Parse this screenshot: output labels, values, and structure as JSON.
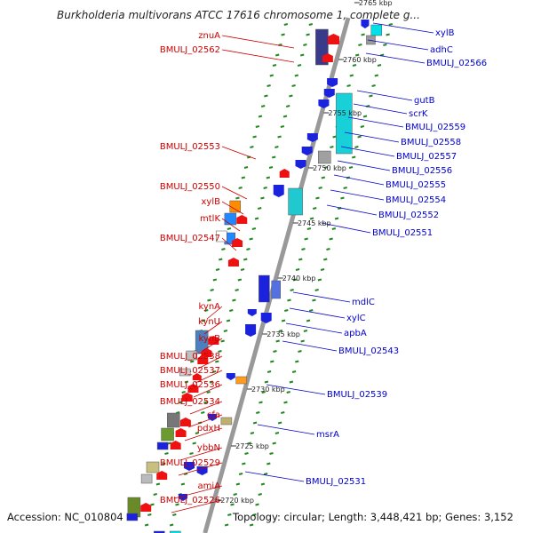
{
  "title": "Burkholderia multivorans ATCC 17616 chromosome 1, complete g...",
  "footer": {
    "accession": "Accession: NC_010804",
    "topology": "Topology: circular; Length: 3,448,421 bp; Genes: 3,152"
  },
  "colors": {
    "left_label": "#cc0000",
    "right_label": "#0000cc",
    "backbone": "#999999",
    "tick": "#228822",
    "red_arrow": "#ee1111",
    "blue_arrow": "#1a22dd"
  },
  "kbp_marks": [
    {
      "text": "2765 kbp"
    },
    {
      "text": "2760 kbp"
    },
    {
      "text": "2755 kbp"
    },
    {
      "text": "2750 kbp"
    },
    {
      "text": "2745 kbp"
    },
    {
      "text": "2740 kbp"
    },
    {
      "text": "2735 kbp"
    },
    {
      "text": "2730 kbp"
    },
    {
      "text": "2725 kbp"
    },
    {
      "text": "2720 kbp"
    }
  ],
  "left_genes": [
    {
      "name": "znuA"
    },
    {
      "name": "BMULJ_02562"
    },
    {
      "name": "BMULJ_02553"
    },
    {
      "name": "BMULJ_02550"
    },
    {
      "name": "xylB"
    },
    {
      "name": "mtlK"
    },
    {
      "name": "BMULJ_02547"
    },
    {
      "name": "kynA"
    },
    {
      "name": "kynU"
    },
    {
      "name": "kynB"
    },
    {
      "name": "BMULJ_02538"
    },
    {
      "name": "BMULJ_02537"
    },
    {
      "name": "BMULJ_02536"
    },
    {
      "name": "BMULJ_02534"
    },
    {
      "name": "cfa"
    },
    {
      "name": "pdxH"
    },
    {
      "name": "ybbN"
    },
    {
      "name": "BMULJ_02529"
    },
    {
      "name": "amiA"
    },
    {
      "name": "BMULJ_02526"
    }
  ],
  "right_genes": [
    {
      "name": "xylB"
    },
    {
      "name": "adhC"
    },
    {
      "name": "BMULJ_02566"
    },
    {
      "name": "gutB"
    },
    {
      "name": "scrK"
    },
    {
      "name": "BMULJ_02559"
    },
    {
      "name": "BMULJ_02558"
    },
    {
      "name": "BMULJ_02557"
    },
    {
      "name": "BMULJ_02556"
    },
    {
      "name": "BMULJ_02555"
    },
    {
      "name": "BMULJ_02554"
    },
    {
      "name": "BMULJ_02552"
    },
    {
      "name": "BMULJ_02551"
    },
    {
      "name": "mdlC"
    },
    {
      "name": "xylC"
    },
    {
      "name": "apbA"
    },
    {
      "name": "BMULJ_02543"
    },
    {
      "name": "BMULJ_02539"
    },
    {
      "name": "msrA"
    },
    {
      "name": "BMULJ_02531"
    }
  ]
}
